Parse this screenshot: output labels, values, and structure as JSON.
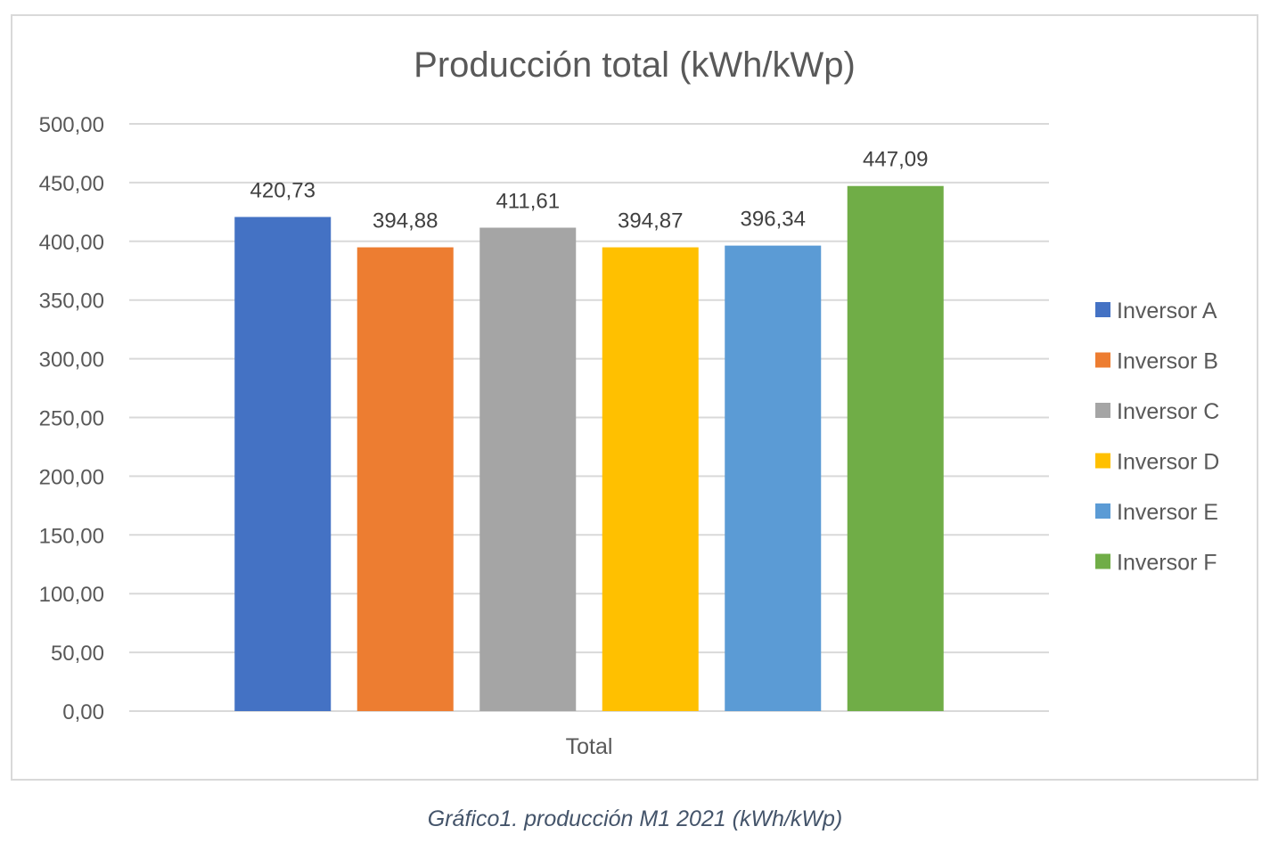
{
  "chart_data": {
    "type": "bar",
    "title": "Producción total (kWh/kWp)",
    "categories": [
      "Total"
    ],
    "series": [
      {
        "name": "Inversor A",
        "values": [
          420.73
        ],
        "label": "420,73",
        "color": "#4472c4"
      },
      {
        "name": "Inversor B",
        "values": [
          394.88
        ],
        "label": "394,88",
        "color": "#ed7d31"
      },
      {
        "name": "Inversor C",
        "values": [
          411.61
        ],
        "label": "411,61",
        "color": "#a5a5a5"
      },
      {
        "name": "Inversor D",
        "values": [
          394.87
        ],
        "label": "394,87",
        "color": "#ffc000"
      },
      {
        "name": "Inversor E",
        "values": [
          396.34
        ],
        "label": "396,34",
        "color": "#5b9bd5"
      },
      {
        "name": "Inversor F",
        "values": [
          447.09
        ],
        "label": "447,09",
        "color": "#70ad47"
      }
    ],
    "ylim": [
      0,
      500
    ],
    "ytick_values": [
      0,
      50,
      100,
      150,
      200,
      250,
      300,
      350,
      400,
      450,
      500
    ],
    "yticks": [
      "0,00",
      "50,00",
      "100,00",
      "150,00",
      "200,00",
      "250,00",
      "300,00",
      "350,00",
      "400,00",
      "450,00",
      "500,00"
    ],
    "xlabel": "",
    "ylabel": "",
    "grid": true,
    "legend_position": "right"
  },
  "caption": "Gráfico1. producción M1 2021 (kWh/kWp)",
  "colors": {
    "gridline": "#d9d9d9",
    "text": "#595959",
    "caption": "#44546a"
  }
}
